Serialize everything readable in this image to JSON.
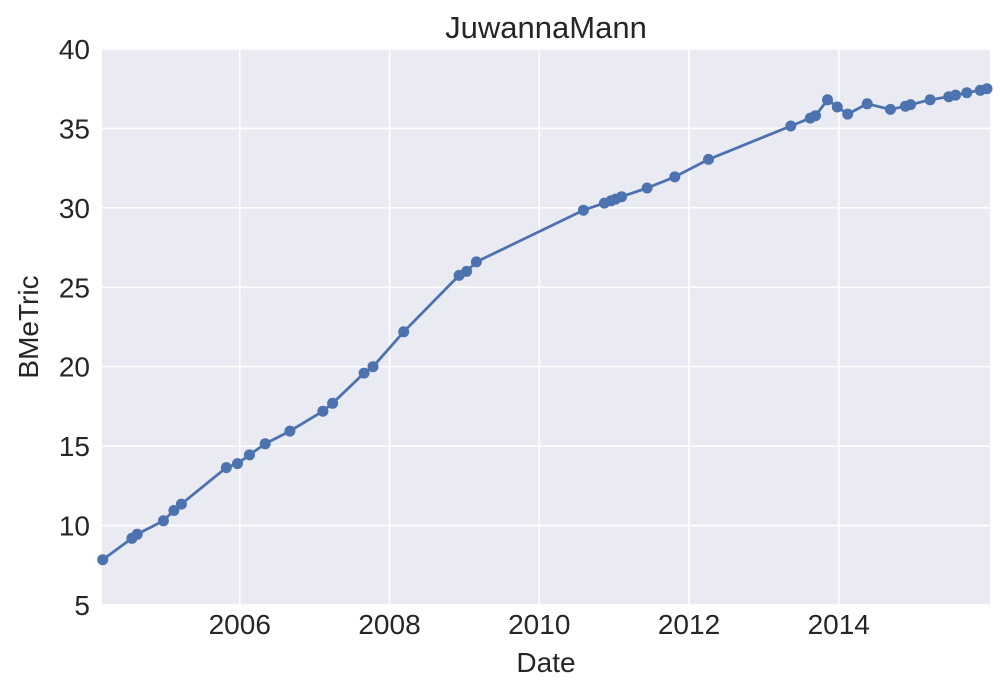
{
  "chart_data": {
    "type": "line",
    "title": "JuwannaMann",
    "xlabel": "Date",
    "ylabel": "BMeTric",
    "x_ticks": [
      2006,
      2008,
      2010,
      2012,
      2014
    ],
    "x_tick_labels": [
      "2006",
      "2008",
      "2010",
      "2012",
      "2014"
    ],
    "y_ticks": [
      5,
      10,
      15,
      20,
      25,
      30,
      35,
      40
    ],
    "y_tick_labels": [
      "5",
      "10",
      "15",
      "20",
      "25",
      "30",
      "35",
      "40"
    ],
    "xlim": [
      2004.16,
      2016.02
    ],
    "ylim": [
      5,
      40
    ],
    "grid": true,
    "legend": false,
    "style": {
      "line_color": "#4c72b0",
      "marker": "circle",
      "marker_radius": 5.5,
      "line_width": 2.8,
      "plot_background": "#eaeaf2",
      "grid_color": "#ffffff",
      "figure_background": "#ffffff",
      "text_color": "#262626"
    },
    "series": [
      {
        "name": "BMeTric",
        "x": [
          2004.17,
          2004.56,
          2004.63,
          2004.98,
          2005.12,
          2005.22,
          2005.82,
          2005.97,
          2006.13,
          2006.34,
          2006.67,
          2007.11,
          2007.24,
          2007.66,
          2007.78,
          2008.19,
          2008.93,
          2009.03,
          2009.16,
          2010.59,
          2010.87,
          2010.96,
          2011.02,
          2011.1,
          2011.44,
          2011.81,
          2012.26,
          2013.36,
          2013.62,
          2013.69,
          2013.85,
          2013.98,
          2014.12,
          2014.38,
          2014.69,
          2014.89,
          2014.96,
          2015.22,
          2015.47,
          2015.56,
          2015.71,
          2015.89,
          2015.98
        ],
        "y": [
          7.85,
          9.2,
          9.45,
          10.3,
          10.95,
          11.35,
          13.65,
          13.9,
          14.45,
          15.15,
          15.95,
          17.2,
          17.7,
          19.6,
          20.0,
          22.2,
          25.75,
          26.0,
          26.6,
          29.85,
          30.3,
          30.45,
          30.55,
          30.7,
          31.25,
          31.95,
          33.05,
          35.15,
          35.65,
          35.8,
          36.8,
          36.35,
          35.9,
          36.55,
          36.2,
          36.4,
          36.5,
          36.8,
          37.0,
          37.1,
          37.25,
          37.4,
          37.5
        ]
      }
    ]
  }
}
